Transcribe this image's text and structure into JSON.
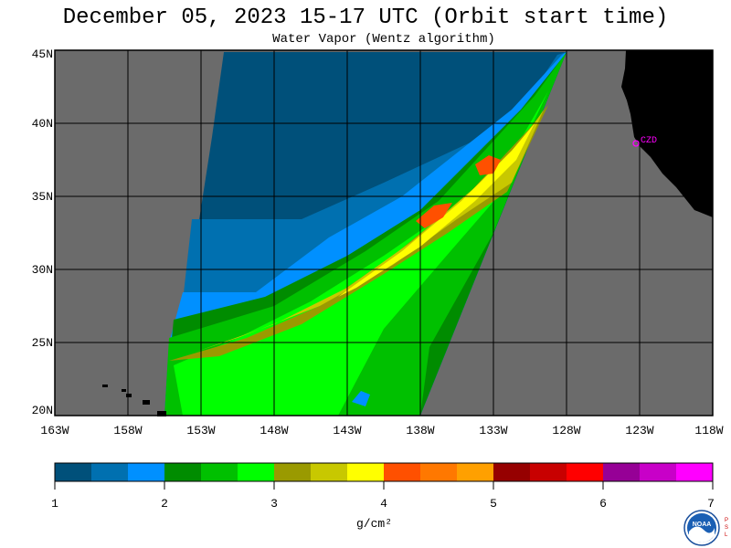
{
  "title": "December 05, 2023  15-17 UTC  (Orbit start time)",
  "subtitle": "Water Vapor (Wentz algorithm)",
  "map": {
    "lat_labels": [
      "45N",
      "40N",
      "35N",
      "30N",
      "25N",
      "20N"
    ],
    "lon_labels": [
      "163W",
      "158W",
      "153W",
      "148W",
      "143W",
      "138W",
      "133W",
      "128W",
      "123W",
      "118W"
    ],
    "station_label": "CZD",
    "colors": {
      "ocean_no_data": "#6b6b6b",
      "land": "#000000",
      "grid": "#000000",
      "station": "#ff00ff"
    }
  },
  "colorbar": {
    "tick_labels": [
      "1",
      "2",
      "3",
      "4",
      "5",
      "6",
      "7"
    ],
    "unit_label": "g/cm²",
    "colors": [
      "#00507a",
      "#0070b0",
      "#0090ff",
      "#008c00",
      "#00c000",
      "#00ff00",
      "#9a9a00",
      "#c8c800",
      "#ffff00",
      "#ff5000",
      "#ff7800",
      "#ffa000",
      "#960000",
      "#c80000",
      "#ff0000",
      "#960096",
      "#c800c8",
      "#ff00ff"
    ]
  },
  "logo": {
    "text": "NOAA",
    "side_letters": "PSL"
  }
}
